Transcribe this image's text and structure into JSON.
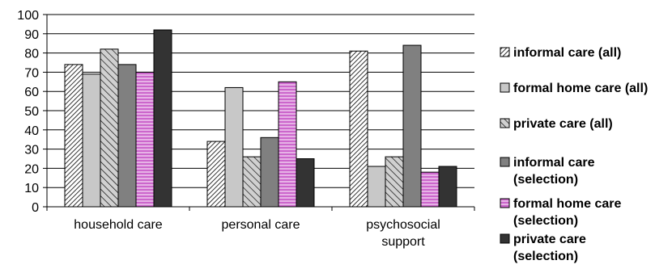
{
  "chart_data": {
    "type": "bar",
    "title": "",
    "xlabel": "",
    "ylabel": "",
    "ylim": [
      0,
      100
    ],
    "yticks": [
      0,
      10,
      20,
      30,
      40,
      50,
      60,
      70,
      80,
      90,
      100
    ],
    "grid": true,
    "legend_position": "right",
    "categories": [
      [
        "household care"
      ],
      [
        "personal care"
      ],
      [
        "psychosocial",
        "support"
      ]
    ],
    "series": [
      {
        "name": [
          "informal care (all)"
        ],
        "values": [
          74,
          34,
          81
        ],
        "fill": "hatch-fine",
        "color": "#000000"
      },
      {
        "name": [
          "formal home care (all)"
        ],
        "values": [
          69,
          62,
          21
        ],
        "fill": "solid",
        "color": "#c8c8c8"
      },
      {
        "name": [
          "private care (all)"
        ],
        "values": [
          82,
          26,
          26
        ],
        "fill": "hatch-wide",
        "color": "#000000"
      },
      {
        "name": [
          "informal care",
          "(selection)"
        ],
        "values": [
          74,
          36,
          84
        ],
        "fill": "solid",
        "color": "#808080"
      },
      {
        "name": [
          "formal home care",
          "(selection)"
        ],
        "values": [
          70,
          65,
          18
        ],
        "fill": "stripe",
        "color": "#cc66cc"
      },
      {
        "name": [
          "private care",
          "(selection)"
        ],
        "values": [
          92,
          25,
          21
        ],
        "fill": "solid",
        "color": "#333333"
      }
    ]
  }
}
